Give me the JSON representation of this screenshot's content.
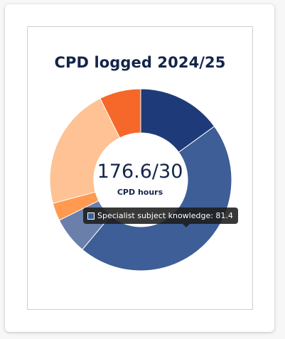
{
  "card": {
    "title": "CPD logged 2024/25",
    "center_value": "176.6/30",
    "center_label": "CPD hours"
  },
  "tooltip": {
    "text": "Specialist subject knowledge: 81.4",
    "swatch_color": "#3d5e96"
  },
  "chart_data": {
    "type": "doughnut",
    "title": "CPD logged 2024/25",
    "total": 176.6,
    "target": 30,
    "slices": [
      {
        "value": 26.5,
        "color": "#1f3a78"
      },
      {
        "value": 81.4,
        "color": "#3d5e96",
        "label": "Specialist subject knowledge"
      },
      {
        "value": 11.6,
        "color": "#6a80ab"
      },
      {
        "value": 5.6,
        "color": "#ff9a50"
      },
      {
        "value": 38.5,
        "color": "#ffc294"
      },
      {
        "value": 13.0,
        "color": "#f6682a"
      }
    ]
  }
}
